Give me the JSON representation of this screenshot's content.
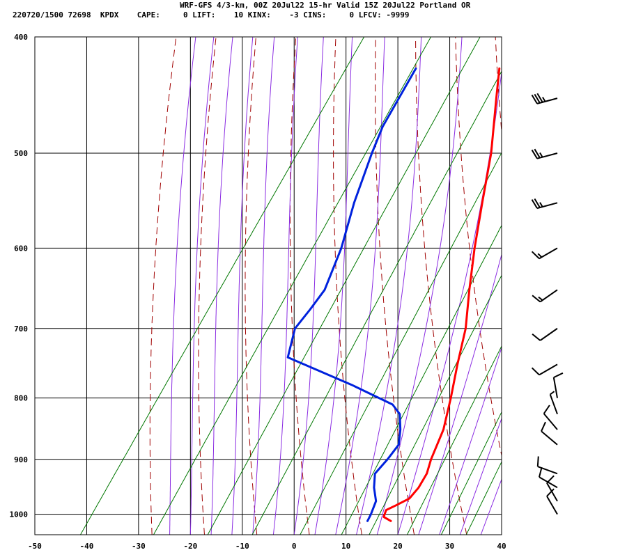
{
  "header": {
    "title": "WRF-GFS 4/3-km, 00Z 20Jul22 15-hr Valid 15Z 20Jul22 Portland OR",
    "station_line": "220720/1500 72698  KPDX    CAPE:     0 LIFT:    10 KINX:    -3 CINS:     0 LFCV: -9999"
  },
  "colors": {
    "temperature": "#ff0000",
    "dewpoint": "#0022dd",
    "isotherm_grid": "#000000",
    "dry_adiabat": "#a00000",
    "moist_adiabat": "#8a2be2",
    "mixing_ratio": "#007700"
  },
  "chart_data": {
    "type": "line",
    "title": "",
    "xlabel": "",
    "ylabel": "",
    "x_axis": {
      "range": [
        -50,
        40
      ],
      "ticks": [
        -50,
        -40,
        -30,
        -20,
        -10,
        0,
        10,
        20,
        30,
        40
      ]
    },
    "y_axis": {
      "scale": "log",
      "range": [
        1040,
        400
      ],
      "ticks": [
        400,
        500,
        600,
        700,
        800,
        900,
        1000
      ]
    },
    "grid": true,
    "skew": "skew-T",
    "series": [
      {
        "key": "temperature",
        "points": [
          {
            "p": 1013,
            "t": 16.9
          },
          {
            "p": 1005,
            "t": 15.0
          },
          {
            "p": 992,
            "t": 14.6
          },
          {
            "p": 983,
            "t": 15.9
          },
          {
            "p": 970,
            "t": 17.6
          },
          {
            "p": 950,
            "t": 18.0
          },
          {
            "p": 925,
            "t": 17.8
          },
          {
            "p": 900,
            "t": 16.8
          },
          {
            "p": 850,
            "t": 15.4
          },
          {
            "p": 800,
            "t": 12.8
          },
          {
            "p": 750,
            "t": 9.8
          },
          {
            "p": 700,
            "t": 6.8
          },
          {
            "p": 650,
            "t": 2.6
          },
          {
            "p": 600,
            "t": -1.7
          },
          {
            "p": 550,
            "t": -6.0
          },
          {
            "p": 500,
            "t": -10.6
          },
          {
            "p": 450,
            "t": -16.6
          },
          {
            "p": 425,
            "t": -19.8
          }
        ]
      },
      {
        "key": "dewpoint",
        "points": [
          {
            "p": 1013,
            "t": 12.4
          },
          {
            "p": 1000,
            "t": 12.2
          },
          {
            "p": 975,
            "t": 11.5
          },
          {
            "p": 950,
            "t": 9.4
          },
          {
            "p": 925,
            "t": 7.8
          },
          {
            "p": 900,
            "t": 8.4
          },
          {
            "p": 875,
            "t": 8.7
          },
          {
            "p": 850,
            "t": 7.1
          },
          {
            "p": 825,
            "t": 5.0
          },
          {
            "p": 810,
            "t": 2.4
          },
          {
            "p": 780,
            "t": -8.0
          },
          {
            "p": 740,
            "t": -23.8
          },
          {
            "p": 700,
            "t": -26.1
          },
          {
            "p": 675,
            "t": -25.6
          },
          {
            "p": 650,
            "t": -25.3
          },
          {
            "p": 600,
            "t": -27.4
          },
          {
            "p": 550,
            "t": -30.7
          },
          {
            "p": 500,
            "t": -33.6
          },
          {
            "p": 475,
            "t": -34.9
          },
          {
            "p": 425,
            "t": -35.9
          }
        ]
      }
    ],
    "wind_barbs": [
      {
        "p": 1000,
        "dir": 330,
        "speed": 10
      },
      {
        "p": 975,
        "dir": 330,
        "speed": 10
      },
      {
        "p": 950,
        "dir": 300,
        "speed": 10
      },
      {
        "p": 925,
        "dir": 290,
        "speed": 10
      },
      {
        "p": 875,
        "dir": 310,
        "speed": 10
      },
      {
        "p": 850,
        "dir": 320,
        "speed": 10
      },
      {
        "p": 825,
        "dir": 340,
        "speed": 5
      },
      {
        "p": 800,
        "dir": 350,
        "speed": 10
      },
      {
        "p": 750,
        "dir": 240,
        "speed": 10
      },
      {
        "p": 700,
        "dir": 235,
        "speed": 10
      },
      {
        "p": 650,
        "dir": 235,
        "speed": 15
      },
      {
        "p": 600,
        "dir": 240,
        "speed": 15
      },
      {
        "p": 550,
        "dir": 255,
        "speed": 25
      },
      {
        "p": 500,
        "dir": 255,
        "speed": 25
      },
      {
        "p": 450,
        "dir": 255,
        "speed": 35
      }
    ]
  }
}
